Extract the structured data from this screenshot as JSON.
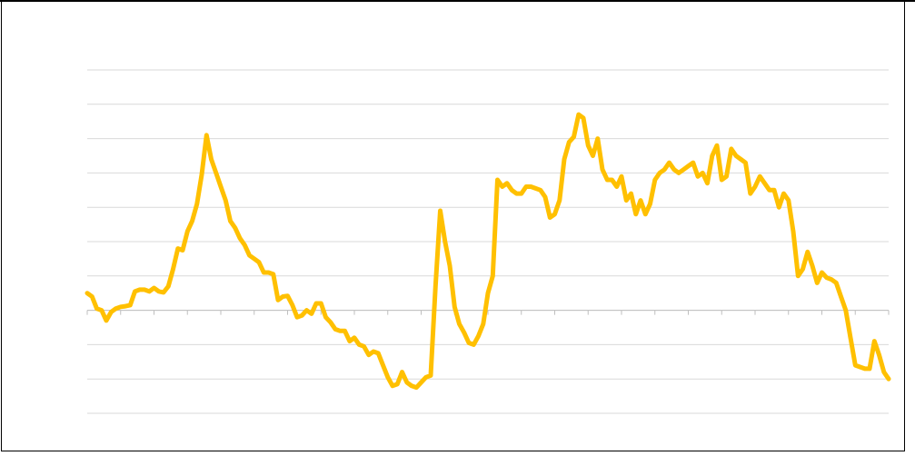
{
  "chart_data": {
    "type": "line",
    "title": "",
    "xlabel": "",
    "ylabel": "",
    "grid": true,
    "legend": "none",
    "colors": {
      "line": "#FFC000",
      "grid": "#D9D9D9",
      "axis": "#BFBFBF",
      "border": "#000000"
    },
    "ylim": [
      -3,
      7
    ],
    "x_ticks": 24,
    "series": [
      {
        "values": [
          0.5,
          0.4,
          0.05,
          0.0,
          -0.3,
          -0.05,
          0.05,
          0.1,
          0.12,
          0.15,
          0.55,
          0.6,
          0.6,
          0.55,
          0.65,
          0.55,
          0.52,
          0.7,
          1.2,
          1.8,
          1.75,
          2.3,
          2.6,
          3.1,
          3.95,
          5.1,
          4.4,
          4.0,
          3.6,
          3.2,
          2.6,
          2.4,
          2.1,
          1.9,
          1.6,
          1.5,
          1.4,
          1.1,
          1.1,
          1.05,
          0.3,
          0.4,
          0.42,
          0.15,
          -0.2,
          -0.15,
          0.0,
          -0.1,
          0.2,
          0.2,
          -0.2,
          -0.35,
          -0.55,
          -0.6,
          -0.6,
          -0.9,
          -0.8,
          -1.0,
          -1.05,
          -1.3,
          -1.2,
          -1.25,
          -1.6,
          -1.95,
          -2.2,
          -2.15,
          -1.8,
          -2.1,
          -2.2,
          -2.25,
          -2.1,
          -1.95,
          -1.9,
          0.7,
          2.9,
          2.0,
          1.3,
          0.1,
          -0.4,
          -0.65,
          -0.95,
          -1.0,
          -0.75,
          -0.4,
          0.5,
          1.0,
          3.8,
          3.6,
          3.7,
          3.5,
          3.4,
          3.4,
          3.6,
          3.6,
          3.55,
          3.5,
          3.3,
          2.7,
          2.8,
          3.2,
          4.4,
          4.9,
          5.05,
          5.7,
          5.6,
          4.8,
          4.5,
          5.0,
          4.1,
          3.8,
          3.8,
          3.6,
          3.9,
          3.2,
          3.4,
          2.8,
          3.2,
          2.8,
          3.1,
          3.8,
          4.0,
          4.1,
          4.3,
          4.1,
          4.0,
          4.1,
          4.2,
          4.3,
          3.9,
          4.0,
          3.7,
          4.5,
          4.8,
          3.8,
          3.9,
          4.7,
          4.5,
          4.4,
          4.3,
          3.4,
          3.6,
          3.9,
          3.7,
          3.5,
          3.5,
          3.0,
          3.4,
          3.2,
          2.3,
          1.0,
          1.2,
          1.7,
          1.3,
          0.8,
          1.1,
          0.95,
          0.9,
          0.8,
          0.4,
          0.0,
          -0.8,
          -1.6,
          -1.65,
          -1.7,
          -1.7,
          -0.9,
          -1.3,
          -1.8,
          -2.0
        ]
      }
    ]
  }
}
